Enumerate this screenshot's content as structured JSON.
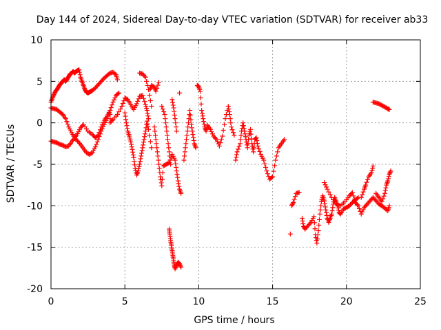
{
  "chart_data": {
    "type": "scatter",
    "title": "Day 144 of 2024, Sidereal Day-to-day VTEC variation (SDTVAR) for receiver ab33",
    "xlabel": "GPS time / hours",
    "ylabel": "SDTVAR / TECUs",
    "xlim": [
      0,
      25
    ],
    "ylim": [
      -20,
      10
    ],
    "xticks": [
      0,
      5,
      10,
      15,
      20,
      25
    ],
    "yticks": [
      -20,
      -15,
      -10,
      -5,
      0,
      5,
      10
    ],
    "grid": true,
    "marker": "+",
    "series_color": "#ff0000",
    "series": [
      {
        "name": "SDTVAR",
        "points": [
          [
            0.0,
            2.5
          ],
          [
            0.1,
            3.0
          ],
          [
            0.2,
            3.4
          ],
          [
            0.3,
            3.8
          ],
          [
            0.4,
            4.0
          ],
          [
            0.5,
            4.3
          ],
          [
            0.6,
            4.6
          ],
          [
            0.7,
            4.8
          ],
          [
            0.8,
            5.0
          ],
          [
            0.9,
            5.2
          ],
          [
            1.0,
            5.0
          ],
          [
            1.1,
            5.3
          ],
          [
            1.2,
            5.6
          ],
          [
            1.3,
            5.9
          ],
          [
            1.4,
            6.0
          ],
          [
            1.5,
            6.2
          ],
          [
            1.6,
            6.0
          ],
          [
            1.7,
            6.2
          ],
          [
            1.8,
            6.3
          ],
          [
            1.9,
            6.4
          ],
          [
            2.0,
            5.5
          ],
          [
            2.1,
            5.0
          ],
          [
            2.2,
            4.5
          ],
          [
            2.3,
            4.0
          ],
          [
            2.4,
            3.7
          ],
          [
            2.5,
            3.6
          ],
          [
            2.6,
            3.7
          ],
          [
            2.7,
            3.8
          ],
          [
            2.8,
            3.9
          ],
          [
            3.0,
            4.2
          ],
          [
            3.2,
            4.6
          ],
          [
            3.4,
            5.0
          ],
          [
            3.6,
            5.4
          ],
          [
            3.8,
            5.7
          ],
          [
            4.0,
            6.0
          ],
          [
            4.2,
            6.1
          ],
          [
            4.4,
            5.8
          ],
          [
            4.5,
            5.2
          ],
          [
            0.0,
            1.8
          ],
          [
            0.2,
            1.7
          ],
          [
            0.4,
            1.6
          ],
          [
            0.6,
            1.3
          ],
          [
            0.8,
            1.0
          ],
          [
            1.0,
            0.5
          ],
          [
            1.2,
            -0.5
          ],
          [
            1.4,
            -1.2
          ],
          [
            1.6,
            -1.8
          ],
          [
            1.8,
            -2.2
          ],
          [
            2.0,
            -2.6
          ],
          [
            2.2,
            -3.1
          ],
          [
            2.4,
            -3.6
          ],
          [
            2.6,
            -3.8
          ],
          [
            2.8,
            -3.6
          ],
          [
            3.0,
            -2.9
          ],
          [
            3.2,
            -2.0
          ],
          [
            3.4,
            -1.0
          ],
          [
            3.6,
            -0.2
          ],
          [
            3.8,
            0.5
          ],
          [
            4.0,
            1.5
          ],
          [
            4.2,
            2.5
          ],
          [
            4.4,
            3.3
          ],
          [
            4.6,
            3.6
          ],
          [
            0.0,
            -2.2
          ],
          [
            0.2,
            -2.3
          ],
          [
            0.4,
            -2.4
          ],
          [
            0.6,
            -2.6
          ],
          [
            0.8,
            -2.7
          ],
          [
            1.0,
            -2.9
          ],
          [
            1.2,
            -2.8
          ],
          [
            1.4,
            -2.3
          ],
          [
            1.6,
            -1.8
          ],
          [
            1.8,
            -1.3
          ],
          [
            2.0,
            -0.6
          ],
          [
            2.2,
            -0.2
          ],
          [
            2.5,
            -1.0
          ],
          [
            2.8,
            -1.4
          ],
          [
            3.0,
            -1.8
          ],
          [
            3.2,
            -1.5
          ],
          [
            3.4,
            -0.5
          ],
          [
            3.6,
            0.3
          ],
          [
            3.8,
            0.8
          ],
          [
            4.0,
            1.5
          ],
          [
            4.0,
            0.0
          ],
          [
            4.2,
            0.4
          ],
          [
            4.5,
            1.0
          ],
          [
            4.8,
            2.0
          ],
          [
            5.0,
            3.0
          ],
          [
            5.2,
            2.8
          ],
          [
            5.4,
            2.2
          ],
          [
            5.6,
            1.6
          ],
          [
            5.8,
            2.3
          ],
          [
            6.0,
            3.2
          ],
          [
            6.2,
            3.3
          ],
          [
            6.4,
            2.2
          ],
          [
            6.5,
            1.5
          ],
          [
            6.6,
            0.5
          ],
          [
            6.7,
            4.0
          ],
          [
            6.8,
            4.5
          ],
          [
            7.0,
            4.3
          ],
          [
            7.1,
            3.8
          ],
          [
            7.3,
            4.9
          ],
          [
            5.0,
            1.2
          ],
          [
            5.1,
            0.0
          ],
          [
            5.2,
            -1.0
          ],
          [
            5.3,
            -1.6
          ],
          [
            5.4,
            -2.3
          ],
          [
            5.5,
            -3.2
          ],
          [
            5.6,
            -4.2
          ],
          [
            5.7,
            -5.5
          ],
          [
            5.8,
            -6.3
          ],
          [
            5.9,
            -5.8
          ],
          [
            6.0,
            -5.0
          ],
          [
            6.1,
            -4.0
          ],
          [
            6.2,
            -3.0
          ],
          [
            6.3,
            -2.0
          ],
          [
            6.4,
            -1.0
          ],
          [
            6.5,
            0.2
          ],
          [
            6.6,
            -0.8
          ],
          [
            6.8,
            -3.0
          ],
          [
            6.0,
            6.0
          ],
          [
            6.2,
            5.9
          ],
          [
            6.4,
            5.5
          ],
          [
            6.6,
            4.0
          ],
          [
            6.8,
            2.0
          ],
          [
            7.0,
            -0.5
          ],
          [
            7.1,
            -2.0
          ],
          [
            7.2,
            -3.5
          ],
          [
            7.3,
            -5.0
          ],
          [
            7.4,
            -6.5
          ],
          [
            7.5,
            -7.6
          ],
          [
            7.6,
            -5.2
          ],
          [
            7.8,
            -5.0
          ],
          [
            8.0,
            -4.8
          ],
          [
            8.2,
            -3.8
          ],
          [
            8.4,
            -4.5
          ],
          [
            8.5,
            -5.8
          ],
          [
            8.6,
            -7.0
          ],
          [
            8.7,
            -8.0
          ],
          [
            8.8,
            -8.5
          ],
          [
            7.5,
            2.0
          ],
          [
            7.7,
            1.0
          ],
          [
            7.8,
            -0.5
          ],
          [
            7.9,
            -2.0
          ],
          [
            8.0,
            -3.5
          ],
          [
            8.1,
            -5.0
          ],
          [
            8.0,
            -12.8
          ],
          [
            8.05,
            -13.5
          ],
          [
            8.1,
            -14.2
          ],
          [
            8.15,
            -14.8
          ],
          [
            8.2,
            -15.4
          ],
          [
            8.25,
            -16.0
          ],
          [
            8.3,
            -16.6
          ],
          [
            8.35,
            -17.2
          ],
          [
            8.4,
            -17.6
          ],
          [
            8.5,
            -17.2
          ],
          [
            8.6,
            -16.8
          ],
          [
            8.7,
            -17.0
          ],
          [
            8.8,
            -17.4
          ],
          [
            8.2,
            2.8
          ],
          [
            8.3,
            1.8
          ],
          [
            8.4,
            0.5
          ],
          [
            8.5,
            -1.0
          ],
          [
            8.7,
            3.6
          ],
          [
            9.0,
            -4.5
          ],
          [
            9.1,
            -3.0
          ],
          [
            9.2,
            -1.5
          ],
          [
            9.3,
            0.0
          ],
          [
            9.4,
            1.5
          ],
          [
            9.5,
            -0.2
          ],
          [
            9.6,
            -1.4
          ],
          [
            9.7,
            -2.5
          ],
          [
            9.8,
            -3.0
          ],
          [
            9.9,
            4.5
          ],
          [
            10.0,
            4.4
          ],
          [
            10.1,
            3.8
          ],
          [
            10.2,
            1.5
          ],
          [
            10.3,
            0.5
          ],
          [
            10.4,
            -0.5
          ],
          [
            10.5,
            -1.0
          ],
          [
            10.6,
            -0.3
          ],
          [
            10.8,
            -0.8
          ],
          [
            11.0,
            -1.6
          ],
          [
            11.2,
            -2.0
          ],
          [
            11.4,
            -2.8
          ],
          [
            11.6,
            -1.6
          ],
          [
            11.8,
            0.5
          ],
          [
            12.0,
            2.0
          ],
          [
            12.1,
            1.0
          ],
          [
            12.2,
            -0.5
          ],
          [
            12.4,
            -1.5
          ],
          [
            12.5,
            -4.5
          ],
          [
            12.6,
            -3.5
          ],
          [
            12.8,
            -2.5
          ],
          [
            12.9,
            -1.0
          ],
          [
            13.0,
            0.0
          ],
          [
            13.1,
            -1.0
          ],
          [
            13.2,
            -2.0
          ],
          [
            13.3,
            -3.0
          ],
          [
            13.4,
            -1.5
          ],
          [
            13.5,
            -0.8
          ],
          [
            13.6,
            -2.5
          ],
          [
            13.7,
            -3.5
          ],
          [
            13.8,
            -2.0
          ],
          [
            13.9,
            -1.8
          ],
          [
            14.0,
            -2.8
          ],
          [
            14.2,
            -3.8
          ],
          [
            14.4,
            -4.5
          ],
          [
            14.6,
            -5.8
          ],
          [
            14.8,
            -6.8
          ],
          [
            15.0,
            -6.5
          ],
          [
            15.2,
            -4.5
          ],
          [
            15.4,
            -3.0
          ],
          [
            15.6,
            -2.5
          ],
          [
            15.8,
            -2.0
          ],
          [
            16.2,
            -13.4
          ],
          [
            16.3,
            -10.0
          ],
          [
            16.4,
            -9.6
          ],
          [
            16.6,
            -8.5
          ],
          [
            16.8,
            -8.4
          ],
          [
            17.0,
            -11.5
          ],
          [
            17.1,
            -12.5
          ],
          [
            17.2,
            -12.8
          ],
          [
            17.4,
            -12.4
          ],
          [
            17.6,
            -12.0
          ],
          [
            17.8,
            -11.3
          ],
          [
            17.9,
            -13.5
          ],
          [
            18.0,
            -14.5
          ],
          [
            18.1,
            -13.0
          ],
          [
            18.2,
            -11.0
          ],
          [
            18.3,
            -9.5
          ],
          [
            18.4,
            -8.8
          ],
          [
            18.5,
            -9.4
          ],
          [
            18.6,
            -10.5
          ],
          [
            18.7,
            -11.5
          ],
          [
            18.8,
            -12.0
          ],
          [
            18.9,
            -11.5
          ],
          [
            19.0,
            -11.0
          ],
          [
            19.1,
            -9.8
          ],
          [
            19.2,
            -9.0
          ],
          [
            19.3,
            -9.5
          ],
          [
            19.4,
            -10.0
          ],
          [
            19.5,
            -10.8
          ],
          [
            19.6,
            -11.0
          ],
          [
            19.8,
            -10.4
          ],
          [
            20.0,
            -10.2
          ],
          [
            20.2,
            -10.0
          ],
          [
            20.4,
            -9.6
          ],
          [
            20.6,
            -9.3
          ],
          [
            20.8,
            -9.0
          ],
          [
            18.5,
            -7.2
          ],
          [
            18.7,
            -8.0
          ],
          [
            19.0,
            -9.0
          ],
          [
            19.3,
            -9.8
          ],
          [
            19.6,
            -10.0
          ],
          [
            19.9,
            -9.5
          ],
          [
            20.2,
            -8.8
          ],
          [
            20.4,
            -8.4
          ],
          [
            20.6,
            -9.6
          ],
          [
            20.8,
            -10.0
          ],
          [
            21.0,
            -11.0
          ],
          [
            21.2,
            -10.2
          ],
          [
            21.4,
            -9.8
          ],
          [
            21.6,
            -9.4
          ],
          [
            21.8,
            -9.0
          ],
          [
            22.0,
            -9.4
          ],
          [
            22.2,
            -9.8
          ],
          [
            22.4,
            -10.0
          ],
          [
            22.6,
            -10.3
          ],
          [
            22.8,
            -10.6
          ],
          [
            22.9,
            -10.0
          ],
          [
            21.0,
            -9.0
          ],
          [
            21.2,
            -8.0
          ],
          [
            21.3,
            -7.5
          ],
          [
            21.5,
            -6.5
          ],
          [
            21.7,
            -6.0
          ],
          [
            21.8,
            -5.2
          ],
          [
            22.0,
            -8.5
          ],
          [
            22.2,
            -9.0
          ],
          [
            22.4,
            -9.5
          ],
          [
            22.6,
            -8.5
          ],
          [
            22.7,
            -7.5
          ],
          [
            22.8,
            -7.0
          ],
          [
            22.9,
            -6.2
          ],
          [
            23.0,
            -5.8
          ],
          [
            21.8,
            2.5
          ],
          [
            22.0,
            2.4
          ],
          [
            22.2,
            2.3
          ],
          [
            22.4,
            2.1
          ],
          [
            22.6,
            1.9
          ],
          [
            22.8,
            1.7
          ],
          [
            22.9,
            1.6
          ]
        ]
      }
    ]
  }
}
